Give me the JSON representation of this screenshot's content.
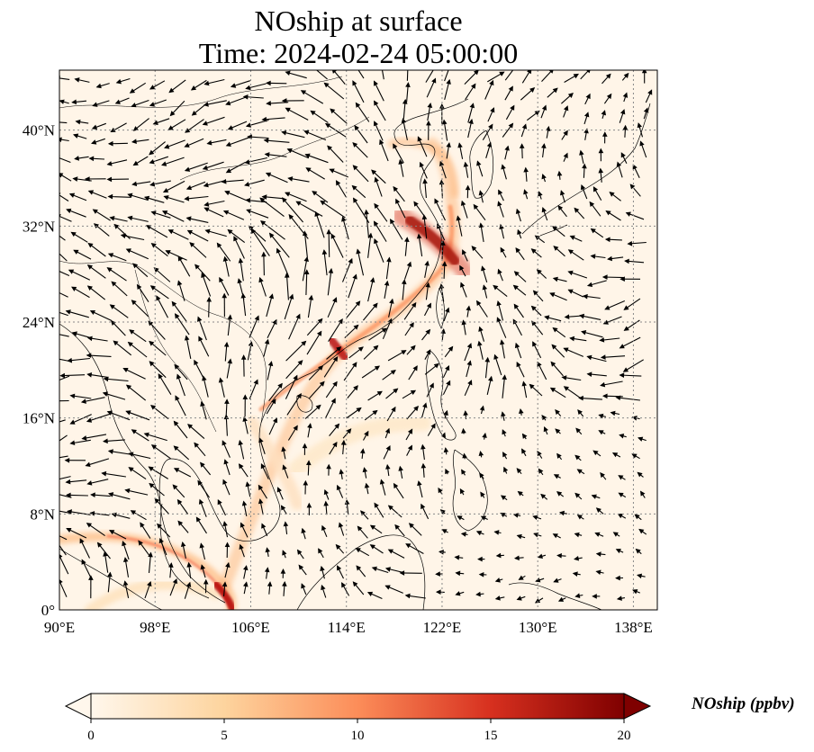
{
  "title_line1": "NOship at surface",
  "title_line2": "Time: 2024-02-24 05:00:00",
  "map": {
    "lon_range": [
      90,
      140
    ],
    "lat_range": [
      0,
      45
    ],
    "x_ticks": [
      "90°E",
      "98°E",
      "106°E",
      "114°E",
      "122°E",
      "130°E",
      "138°E"
    ],
    "y_ticks": [
      "0°",
      "8°N",
      "16°N",
      "24°N",
      "32°N",
      "40°N"
    ],
    "gridlines": "dotted",
    "field_name": "NOship",
    "overlay": "wind vectors (black arrows)"
  },
  "colorbar": {
    "label": "NOship (ppbv)",
    "ticks": [
      "0",
      "5",
      "10",
      "15",
      "20"
    ],
    "range": [
      0,
      20
    ],
    "colormap": "OrRd",
    "extend": "both",
    "colors": [
      "#fff7ec",
      "#fdd49e",
      "#fc8d59",
      "#d7301f",
      "#7f0000"
    ]
  }
}
